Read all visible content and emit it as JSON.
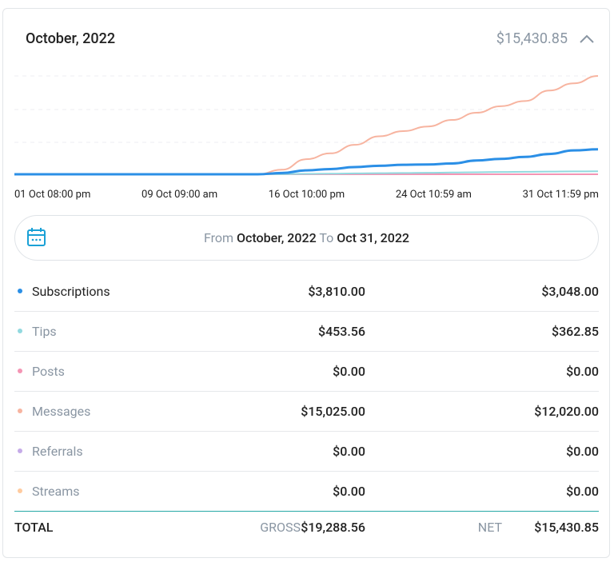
{
  "header": {
    "title": "October, 2022",
    "amount": "$15,430.85"
  },
  "chart": {
    "type": "line",
    "x_labels": [
      "01 Oct 08:00 pm",
      "09 Oct 09:00 am",
      "16 Oct 10:00 pm",
      "24 Oct 10:59 am",
      "31 Oct 11:59 pm"
    ],
    "series": [
      {
        "values": [
          0,
          0,
          0,
          0,
          0,
          0,
          0,
          0,
          0,
          0,
          0,
          200,
          600,
          800,
          1100,
          1300,
          1450,
          1500,
          1650,
          2100,
          2350,
          2650,
          3100,
          3650,
          3810
        ]
      },
      {
        "values": [
          0,
          0,
          0,
          0,
          0,
          0,
          0,
          0,
          0,
          0,
          0,
          20,
          60,
          90,
          130,
          170,
          200,
          230,
          270,
          310,
          350,
          380,
          410,
          440,
          453
        ]
      },
      {
        "values": [
          0,
          0,
          0,
          0,
          0,
          0,
          0,
          0,
          0,
          0,
          0,
          0,
          0,
          0,
          0,
          0,
          0,
          0,
          0,
          0,
          0,
          0,
          0,
          0,
          0
        ]
      },
      {
        "values": [
          0,
          0,
          0,
          0,
          0,
          0,
          0,
          0,
          0,
          0,
          0,
          700,
          2300,
          3200,
          4500,
          5800,
          6600,
          7300,
          8300,
          9400,
          10400,
          11200,
          12800,
          13900,
          15025
        ]
      },
      {
        "values": [
          0,
          0,
          0,
          0,
          0,
          0,
          0,
          0,
          0,
          0,
          0,
          0,
          0,
          0,
          0,
          0,
          0,
          0,
          0,
          0,
          0,
          0,
          0,
          0,
          0
        ]
      },
      {
        "values": [
          0,
          0,
          0,
          0,
          0,
          0,
          0,
          0,
          0,
          0,
          0,
          0,
          0,
          0,
          0,
          0,
          0,
          0,
          0,
          0,
          0,
          0,
          0,
          0,
          0
        ]
      }
    ]
  },
  "range": {
    "from_label": "From",
    "from": "October, 2022",
    "to_label": "To",
    "to": "Oct 31, 2022"
  },
  "rows": [
    {
      "name": "Subscriptions",
      "color": "#2b8fe6",
      "gross": "$3,810.00",
      "net": "$3,048.00"
    },
    {
      "name": "Tips",
      "color": "#92d9df",
      "gross": "$453.56",
      "net": "$362.85"
    },
    {
      "name": "Posts",
      "color": "#f495b4",
      "gross": "$0.00",
      "net": "$0.00"
    },
    {
      "name": "Messages",
      "color": "#f7b4a0",
      "gross": "$15,025.00",
      "net": "$12,020.00"
    },
    {
      "name": "Referrals",
      "color": "#c5abe8",
      "gross": "$0.00",
      "net": "$0.00"
    },
    {
      "name": "Streams",
      "color": "#ffcb9f",
      "gross": "$0.00",
      "net": "$0.00"
    }
  ],
  "total": {
    "label": "TOTAL",
    "gross_label": "GROSS",
    "gross": "$19,288.56",
    "net_label": "NET",
    "net": "$15,430.85"
  }
}
